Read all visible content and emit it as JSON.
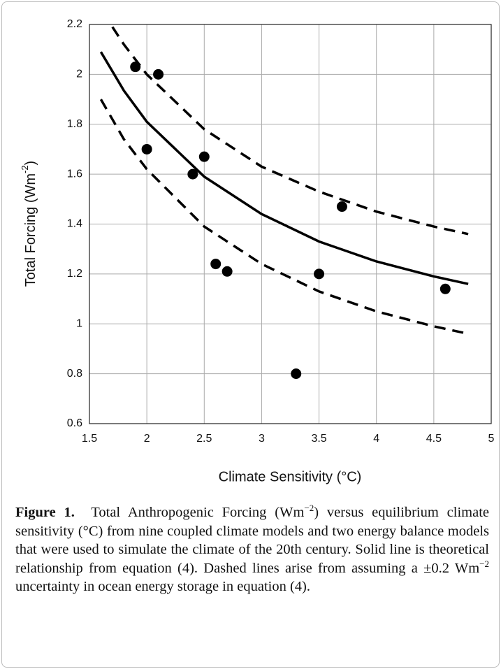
{
  "chart_data": {
    "type": "scatter",
    "xlabel": "Climate Sensitivity (°C)",
    "ylabel": [
      "Total Forcing (Wm",
      "-2",
      ")"
    ],
    "xlim": [
      1.5,
      5
    ],
    "xticks": [
      1.5,
      2,
      2.5,
      3,
      3.5,
      4,
      4.5,
      5
    ],
    "ylim": [
      0.6,
      2.2
    ],
    "yticks": [
      0.6,
      0.8,
      1,
      1.2,
      1.4,
      1.6,
      1.8,
      2,
      2.2
    ],
    "grid": true,
    "series": [
      {
        "style": "dots",
        "color": "#000000",
        "x": [
          1.9,
          2.1,
          2.0,
          2.4,
          2.5,
          2.6,
          2.7,
          3.3,
          3.5,
          3.7,
          4.6
        ],
        "values": [
          2.03,
          2.0,
          1.7,
          1.6,
          1.67,
          1.24,
          1.21,
          0.8,
          1.2,
          1.47,
          1.14
        ]
      },
      {
        "style": "solid",
        "color": "#000000",
        "x": [
          1.6,
          1.8,
          2.0,
          2.5,
          3.0,
          3.5,
          4.0,
          4.5,
          4.8
        ],
        "values": [
          2.09,
          1.935,
          1.81,
          1.59,
          1.44,
          1.33,
          1.25,
          1.19,
          1.16
        ]
      },
      {
        "style": "dashed",
        "color": "#000000",
        "x": [
          1.7,
          1.8,
          2.0,
          2.5,
          3.0,
          3.5,
          4.0,
          4.5,
          4.8
        ],
        "values": [
          2.19,
          2.12,
          2.0,
          1.78,
          1.63,
          1.53,
          1.45,
          1.39,
          1.36
        ]
      },
      {
        "style": "dashed",
        "color": "#000000",
        "x": [
          1.6,
          1.8,
          2.0,
          2.5,
          3.0,
          3.5,
          4.0,
          4.5,
          4.8
        ],
        "values": [
          1.9,
          1.74,
          1.62,
          1.39,
          1.24,
          1.13,
          1.05,
          0.99,
          0.96
        ]
      }
    ]
  },
  "caption": {
    "label": "Figure 1.",
    "parts": [
      "Total Anthropogenic Forcing (Wm",
      "−2",
      ") versus equilibrium climate sensitivity (°C) from nine coupled climate models and two energy balance models that were used to simulate the climate of the 20th century. Solid line is theoretical relationship from equation (4). Dashed lines arise from assuming a ±0.2 Wm",
      "−2",
      " uncertainty in ocean energy storage in equation (4)."
    ]
  }
}
